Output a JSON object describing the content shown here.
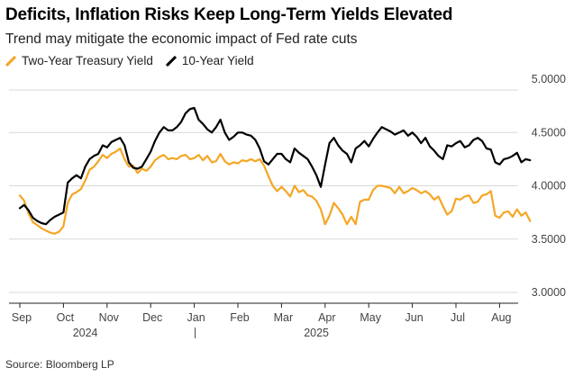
{
  "chart_data": {
    "type": "line",
    "title": "Deficits, Inflation Risks Keep Long-Term Yields Elevated",
    "subtitle": "Trend may mitigate the economic impact of Fed rate cuts",
    "source": "Source: Bloomberg LP",
    "ylim": [
      3.0,
      5.0
    ],
    "y_ticks": [
      "5.0000",
      "4.5000",
      "4.0000",
      "3.5000",
      "3.0000"
    ],
    "y_tick_values": [
      5.0,
      4.5,
      4.0,
      3.5,
      3.0
    ],
    "x_tick_labels": [
      "Sep",
      "Oct",
      "Nov",
      "Dec",
      "Jan",
      "Feb",
      "Mar",
      "Apr",
      "May",
      "Jun",
      "Jul",
      "Aug"
    ],
    "x_tick_months": [
      0,
      1,
      2,
      3,
      4,
      5,
      6,
      7,
      8,
      9,
      10,
      11
    ],
    "year_labels": [
      "2024",
      "2025"
    ],
    "year_label_months": [
      1.5,
      6.8
    ],
    "year_divider_month": 4,
    "x_range": [
      -0.2,
      11.75
    ],
    "grid": true,
    "legend_position": "top-left",
    "series": [
      {
        "name": "Two-Year Treasury Yield",
        "color": "#F5A623",
        "x": [
          0.0,
          0.1,
          0.2,
          0.3,
          0.4,
          0.5,
          0.6,
          0.7,
          0.8,
          0.9,
          1.0,
          1.1,
          1.2,
          1.3,
          1.4,
          1.5,
          1.6,
          1.7,
          1.8,
          1.9,
          2.0,
          2.1,
          2.2,
          2.3,
          2.4,
          2.5,
          2.6,
          2.7,
          2.8,
          2.9,
          3.0,
          3.1,
          3.2,
          3.3,
          3.4,
          3.5,
          3.6,
          3.7,
          3.8,
          3.9,
          4.0,
          4.1,
          4.2,
          4.3,
          4.4,
          4.5,
          4.6,
          4.7,
          4.8,
          4.9,
          5.0,
          5.1,
          5.2,
          5.3,
          5.4,
          5.5,
          5.6,
          5.7,
          5.8,
          5.9,
          6.0,
          6.1,
          6.2,
          6.3,
          6.4,
          6.5,
          6.6,
          6.7,
          6.8,
          6.9,
          7.0,
          7.1,
          7.2,
          7.3,
          7.4,
          7.5,
          7.6,
          7.7,
          7.8,
          7.9,
          8.0,
          8.1,
          8.2,
          8.3,
          8.4,
          8.5,
          8.6,
          8.7,
          8.8,
          8.9,
          9.0,
          9.1,
          9.2,
          9.3,
          9.4,
          9.5,
          9.6,
          9.7,
          9.8,
          9.9,
          10.0,
          10.1,
          10.2,
          10.3,
          10.4,
          10.5,
          10.6,
          10.7,
          10.8,
          10.9,
          11.0,
          11.1,
          11.2,
          11.3,
          11.4,
          11.5,
          11.6,
          11.7
        ],
        "values": [
          3.91,
          3.86,
          3.74,
          3.66,
          3.63,
          3.6,
          3.58,
          3.56,
          3.55,
          3.57,
          3.62,
          3.84,
          3.92,
          3.94,
          3.97,
          4.05,
          4.15,
          4.18,
          4.23,
          4.29,
          4.26,
          4.3,
          4.32,
          4.35,
          4.25,
          4.18,
          4.19,
          4.12,
          4.16,
          4.14,
          4.18,
          4.24,
          4.27,
          4.29,
          4.25,
          4.26,
          4.25,
          4.28,
          4.29,
          4.25,
          4.26,
          4.29,
          4.24,
          4.28,
          4.22,
          4.23,
          4.3,
          4.23,
          4.2,
          4.22,
          4.21,
          4.24,
          4.23,
          4.25,
          4.23,
          4.25,
          4.19,
          4.09,
          4.0,
          3.95,
          3.99,
          3.95,
          3.9,
          4.0,
          3.94,
          3.96,
          3.91,
          3.9,
          3.86,
          3.78,
          3.64,
          3.72,
          3.84,
          3.79,
          3.73,
          3.64,
          3.71,
          3.64,
          3.85,
          3.87,
          3.87,
          3.96,
          4.0,
          4.0,
          3.99,
          3.98,
          3.93,
          3.99,
          3.93,
          3.95,
          3.98,
          3.96,
          3.93,
          3.95,
          3.92,
          3.87,
          3.9,
          3.81,
          3.73,
          3.76,
          3.88,
          3.87,
          3.9,
          3.91,
          3.84,
          3.85,
          3.91,
          3.92,
          3.95,
          3.72,
          3.7,
          3.75,
          3.76,
          3.71,
          3.78,
          3.72,
          3.75,
          3.67
        ]
      },
      {
        "name": "10-Year Yield",
        "color": "#000000",
        "x": [
          0.0,
          0.1,
          0.2,
          0.3,
          0.4,
          0.5,
          0.6,
          0.7,
          0.8,
          0.9,
          1.0,
          1.1,
          1.2,
          1.3,
          1.4,
          1.5,
          1.6,
          1.7,
          1.8,
          1.9,
          2.0,
          2.1,
          2.2,
          2.3,
          2.4,
          2.5,
          2.6,
          2.7,
          2.8,
          2.9,
          3.0,
          3.1,
          3.2,
          3.3,
          3.4,
          3.5,
          3.6,
          3.7,
          3.8,
          3.9,
          4.0,
          4.1,
          4.2,
          4.3,
          4.4,
          4.5,
          4.6,
          4.7,
          4.8,
          4.9,
          5.0,
          5.1,
          5.2,
          5.3,
          5.4,
          5.5,
          5.6,
          5.7,
          5.8,
          5.9,
          6.0,
          6.1,
          6.2,
          6.3,
          6.4,
          6.5,
          6.6,
          6.7,
          6.8,
          6.9,
          7.0,
          7.1,
          7.2,
          7.3,
          7.4,
          7.5,
          7.6,
          7.7,
          7.8,
          7.9,
          8.0,
          8.1,
          8.2,
          8.3,
          8.4,
          8.5,
          8.6,
          8.7,
          8.8,
          8.9,
          9.0,
          9.1,
          9.2,
          9.3,
          9.4,
          9.5,
          9.6,
          9.7,
          9.8,
          9.9,
          10.0,
          10.1,
          10.2,
          10.3,
          10.4,
          10.5,
          10.6,
          10.7,
          10.8,
          10.9,
          11.0,
          11.1,
          11.2,
          11.3,
          11.4,
          11.5,
          11.6,
          11.7
        ],
        "values": [
          3.79,
          3.82,
          3.77,
          3.7,
          3.67,
          3.65,
          3.64,
          3.68,
          3.71,
          3.73,
          3.75,
          4.03,
          4.07,
          4.1,
          4.07,
          4.18,
          4.25,
          4.28,
          4.3,
          4.38,
          4.36,
          4.41,
          4.43,
          4.45,
          4.38,
          4.22,
          4.17,
          4.16,
          4.18,
          4.25,
          4.32,
          4.42,
          4.5,
          4.55,
          4.52,
          4.52,
          4.55,
          4.6,
          4.68,
          4.72,
          4.73,
          4.62,
          4.58,
          4.53,
          4.5,
          4.55,
          4.62,
          4.5,
          4.43,
          4.46,
          4.5,
          4.5,
          4.48,
          4.47,
          4.43,
          4.35,
          4.23,
          4.2,
          4.25,
          4.3,
          4.3,
          4.25,
          4.22,
          4.35,
          4.31,
          4.28,
          4.25,
          4.18,
          4.1,
          3.99,
          4.2,
          4.4,
          4.45,
          4.38,
          4.33,
          4.3,
          4.22,
          4.35,
          4.38,
          4.42,
          4.37,
          4.44,
          4.5,
          4.55,
          4.53,
          4.51,
          4.48,
          4.5,
          4.52,
          4.47,
          4.5,
          4.46,
          4.4,
          4.45,
          4.37,
          4.33,
          4.28,
          4.25,
          4.38,
          4.37,
          4.4,
          4.42,
          4.36,
          4.38,
          4.43,
          4.45,
          4.42,
          4.35,
          4.34,
          4.22,
          4.2,
          4.25,
          4.26,
          4.28,
          4.31,
          4.22,
          4.25,
          4.24
        ]
      }
    ]
  }
}
